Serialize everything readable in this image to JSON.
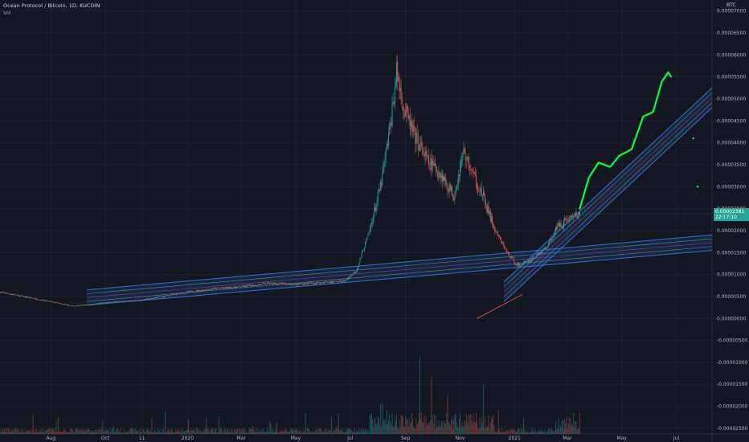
{
  "legend": {
    "title": "Ocean Protocol / Bitcoin, 1D, KUCOIN",
    "volume_label": "Vol"
  },
  "price_axis": {
    "unit": "BTC",
    "current_price": "0.00002381",
    "countdown": "22:17:10"
  },
  "colors": {
    "background": "#131722",
    "grid": "#1e222d",
    "up": "#26a69a",
    "down": "#ef5350",
    "channel_fill": "#2962ff",
    "channel_line": "#3f7fd8",
    "channel_mid": "#6aa84f",
    "projection": "#00ff44"
  },
  "chart_data": {
    "type": "candlestick",
    "symbol": "OCEANBTC",
    "exchange": "KUCOIN",
    "interval": "1D",
    "y_axis": {
      "ticks": [
        "0.00007000",
        "0.00006500",
        "0.00006000",
        "0.00005500",
        "0.00005000",
        "0.00004500",
        "0.00004000",
        "0.00003500",
        "0.00003000",
        "0.00002500",
        "0.00002000",
        "0.00001500",
        "0.00001000",
        "0.00000500",
        "0.00000000",
        "-0.00000500",
        "-0.00001000",
        "-0.00001500",
        "-0.00002000",
        "-0.00002500"
      ],
      "range": [
        -2.63e-05,
        7.25e-05
      ]
    },
    "x_axis": {
      "ticks": [
        "Aug",
        "Oct",
        "11",
        "2020",
        "Mar",
        "May",
        "Jul",
        "Sep",
        "Nov",
        "2021",
        "Mar",
        "May",
        "Jul"
      ],
      "tick_dates": [
        "2019-08-01",
        "2019-10-01",
        "2019-11-11",
        "2020-01-01",
        "2020-03-01",
        "2020-05-01",
        "2020-07-01",
        "2020-09-01",
        "2020-11-01",
        "2021-01-01",
        "2021-03-01",
        "2021-05-01",
        "2021-07-01"
      ],
      "range": [
        "2019-06-05",
        "2021-08-10"
      ]
    },
    "price_path": [
      [
        "2019-06-05",
        6e-06
      ],
      [
        "2019-07-01",
        5e-06
      ],
      [
        "2019-08-01",
        3.8e-06
      ],
      [
        "2019-08-25",
        2.8e-06
      ],
      [
        "2019-09-15",
        3.2e-06
      ],
      [
        "2019-10-01",
        3.6e-06
      ],
      [
        "2019-11-11",
        4.2e-06
      ],
      [
        "2020-01-01",
        6e-06
      ],
      [
        "2020-02-01",
        6.8e-06
      ],
      [
        "2020-03-01",
        7.2e-06
      ],
      [
        "2020-04-01",
        8e-06
      ],
      [
        "2020-05-01",
        7.8e-06
      ],
      [
        "2020-06-01",
        8.2e-06
      ],
      [
        "2020-06-25",
        8.5e-06
      ],
      [
        "2020-07-08",
        1.1e-05
      ],
      [
        "2020-07-22",
        1.95e-05
      ],
      [
        "2020-08-05",
        3.1e-05
      ],
      [
        "2020-08-15",
        4.4e-05
      ],
      [
        "2020-08-22",
        5.6e-05
      ],
      [
        "2020-08-30",
        4.8e-05
      ],
      [
        "2020-09-10",
        4.2e-05
      ],
      [
        "2020-09-25",
        3.6e-05
      ],
      [
        "2020-10-10",
        3.3e-05
      ],
      [
        "2020-10-25",
        2.8e-05
      ],
      [
        "2020-11-05",
        3.8e-05
      ],
      [
        "2020-11-15",
        3.3e-05
      ],
      [
        "2020-11-28",
        2.7e-05
      ],
      [
        "2020-12-10",
        2e-05
      ],
      [
        "2020-12-25",
        1.45e-05
      ],
      [
        "2021-01-05",
        1.2e-05
      ],
      [
        "2021-01-20",
        1.35e-05
      ],
      [
        "2021-02-05",
        1.6e-05
      ],
      [
        "2021-02-20",
        2.15e-05
      ],
      [
        "2021-03-05",
        2.3e-05
      ],
      [
        "2021-03-15",
        2.38e-05
      ]
    ],
    "last_price": 2.381e-05,
    "current_date": "2021-03-15",
    "channels": [
      {
        "name": "",
        "lower_start": [
          "2019-09-10",
          3e-06
        ],
        "lower_end": [
          "2021-08-10",
          1.55e-05
        ],
        "width": 3.5e-06
      },
      {
        "name": "",
        "lower_start": [
          "2020-12-20",
          3.8e-06
        ],
        "lower_end": [
          "2021-08-10",
          4.8e-05
        ],
        "width": 4.5e-06
      }
    ],
    "projection_path": [
      [
        "2021-03-15",
        2.5e-05
      ],
      [
        "2021-03-25",
        3.2e-05
      ],
      [
        "2021-04-05",
        3.55e-05
      ],
      [
        "2021-04-18",
        3.45e-05
      ],
      [
        "2021-04-28",
        3.7e-05
      ],
      [
        "2021-05-12",
        3.85e-05
      ],
      [
        "2021-05-25",
        4.6e-05
      ],
      [
        "2021-06-05",
        4.7e-05
      ],
      [
        "2021-06-15",
        5.4e-05
      ],
      [
        "2021-06-22",
        5.6e-05
      ]
    ],
    "markers": [
      [
        "2021-07-20",
        4.1e-05
      ],
      [
        "2021-07-25",
        3e-05
      ]
    ],
    "red_trendline": [
      [
        "2020-11-20",
        0.0
      ],
      [
        "2021-01-10",
        5.5e-06
      ]
    ]
  }
}
